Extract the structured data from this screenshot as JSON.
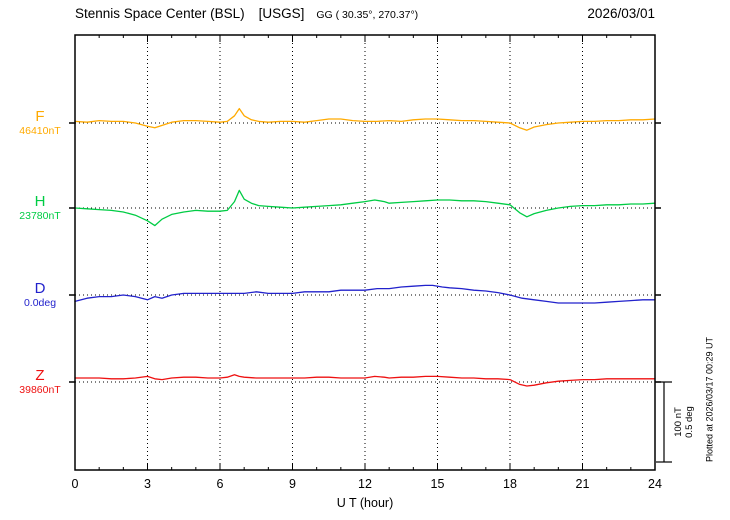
{
  "chart_data": {
    "type": "line",
    "title": "Stennis Space Center (BSL) [USGS] GG ( 30.35°, 270.37°)",
    "station": "Stennis Space Center (BSL)",
    "org": "[USGS]",
    "coords": "GG ( 30.35°, 270.37°)",
    "date": "2026/03/01",
    "xlabel": "U T (hour)",
    "x_range": [
      0,
      24
    ],
    "x_ticks": [
      0,
      3,
      6,
      9,
      12,
      15,
      18,
      21,
      24
    ],
    "grid": {
      "vertical": "dotted line every 3 hours",
      "horizontal": "dotted baseline per trace"
    },
    "scale_bar": {
      "nt_label": "100 nT",
      "deg_label": "0.5 deg",
      "nT_per_div": 100,
      "deg_per_div": 0.5
    },
    "plotted_at": "Plotted at 2026/03/17 00:29 UT",
    "series": [
      {
        "name": "F",
        "baseline_value": "46410nT",
        "units": "nT",
        "color": "#ffaa00",
        "points": [
          [
            0,
            2
          ],
          [
            0.5,
            1
          ],
          [
            1,
            3
          ],
          [
            1.5,
            2
          ],
          [
            2,
            2
          ],
          [
            2.5,
            0
          ],
          [
            3,
            -4
          ],
          [
            3.3,
            -6
          ],
          [
            3.7,
            -2
          ],
          [
            4,
            1
          ],
          [
            4.5,
            3
          ],
          [
            5,
            3
          ],
          [
            5.5,
            2
          ],
          [
            6,
            1
          ],
          [
            6.3,
            2
          ],
          [
            6.6,
            9
          ],
          [
            6.8,
            18
          ],
          [
            7,
            9
          ],
          [
            7.3,
            4
          ],
          [
            7.6,
            2
          ],
          [
            8,
            1
          ],
          [
            8.5,
            2
          ],
          [
            9,
            2
          ],
          [
            9.5,
            1
          ],
          [
            10,
            3
          ],
          [
            10.5,
            5
          ],
          [
            11,
            5
          ],
          [
            11.5,
            3
          ],
          [
            12,
            2
          ],
          [
            12.5,
            2
          ],
          [
            13,
            3
          ],
          [
            13.5,
            2
          ],
          [
            14,
            4
          ],
          [
            14.5,
            5
          ],
          [
            15,
            5
          ],
          [
            15.5,
            4
          ],
          [
            16,
            3
          ],
          [
            16.5,
            3
          ],
          [
            17,
            2
          ],
          [
            17.5,
            1
          ],
          [
            18,
            0
          ],
          [
            18.4,
            -6
          ],
          [
            18.7,
            -9
          ],
          [
            19,
            -5
          ],
          [
            19.5,
            -2
          ],
          [
            20,
            0
          ],
          [
            20.5,
            1
          ],
          [
            21,
            2
          ],
          [
            21.5,
            2
          ],
          [
            22,
            3
          ],
          [
            22.5,
            3
          ],
          [
            23,
            4
          ],
          [
            23.5,
            4
          ],
          [
            24,
            5
          ]
        ]
      },
      {
        "name": "H",
        "baseline_value": "23780nT",
        "units": "nT",
        "color": "#00cc44",
        "points": [
          [
            0,
            0
          ],
          [
            0.5,
            -1
          ],
          [
            1,
            -2
          ],
          [
            1.5,
            -3
          ],
          [
            2,
            -5
          ],
          [
            2.5,
            -9
          ],
          [
            3,
            -16
          ],
          [
            3.3,
            -22
          ],
          [
            3.6,
            -14
          ],
          [
            4,
            -8
          ],
          [
            4.5,
            -5
          ],
          [
            5,
            -3
          ],
          [
            5.5,
            -4
          ],
          [
            6,
            -4
          ],
          [
            6.3,
            -3
          ],
          [
            6.6,
            8
          ],
          [
            6.8,
            22
          ],
          [
            7,
            11
          ],
          [
            7.3,
            6
          ],
          [
            7.6,
            3
          ],
          [
            8,
            2
          ],
          [
            8.5,
            1
          ],
          [
            9,
            0
          ],
          [
            9.5,
            1
          ],
          [
            10,
            2
          ],
          [
            10.5,
            3
          ],
          [
            11,
            4
          ],
          [
            11.5,
            6
          ],
          [
            12,
            8
          ],
          [
            12.4,
            10
          ],
          [
            12.8,
            8
          ],
          [
            13,
            6
          ],
          [
            13.5,
            7
          ],
          [
            14,
            8
          ],
          [
            14.5,
            9
          ],
          [
            15,
            10
          ],
          [
            15.5,
            10
          ],
          [
            16,
            9
          ],
          [
            16.5,
            9
          ],
          [
            17,
            8
          ],
          [
            17.5,
            6
          ],
          [
            18,
            4
          ],
          [
            18.4,
            -6
          ],
          [
            18.7,
            -11
          ],
          [
            19,
            -7
          ],
          [
            19.5,
            -3
          ],
          [
            20,
            0
          ],
          [
            20.5,
            2
          ],
          [
            21,
            3
          ],
          [
            21.5,
            3
          ],
          [
            22,
            4
          ],
          [
            22.5,
            4
          ],
          [
            23,
            5
          ],
          [
            23.5,
            5
          ],
          [
            24,
            6
          ]
        ]
      },
      {
        "name": "D",
        "baseline_value": "0.0deg",
        "units": "deg",
        "color": "#2222cc",
        "points": [
          [
            0,
            -0.04
          ],
          [
            0.5,
            -0.02
          ],
          [
            1,
            -0.01
          ],
          [
            1.5,
            -0.01
          ],
          [
            2,
            0
          ],
          [
            2.5,
            -0.01
          ],
          [
            3,
            -0.03
          ],
          [
            3.3,
            -0.01
          ],
          [
            3.6,
            -0.02
          ],
          [
            4,
            0
          ],
          [
            4.5,
            0.01
          ],
          [
            5,
            0.01
          ],
          [
            5.5,
            0.01
          ],
          [
            6,
            0.01
          ],
          [
            6.5,
            0.01
          ],
          [
            7,
            0.01
          ],
          [
            7.5,
            0.02
          ],
          [
            8,
            0.01
          ],
          [
            8.5,
            0.01
          ],
          [
            9,
            0.01
          ],
          [
            9.5,
            0.02
          ],
          [
            10,
            0.02
          ],
          [
            10.5,
            0.02
          ],
          [
            11,
            0.03
          ],
          [
            11.5,
            0.03
          ],
          [
            12,
            0.03
          ],
          [
            12.5,
            0.04
          ],
          [
            13,
            0.04
          ],
          [
            13.5,
            0.05
          ],
          [
            14,
            0.055
          ],
          [
            14.5,
            0.06
          ],
          [
            14.8,
            0.06
          ],
          [
            15.2,
            0.05
          ],
          [
            15.5,
            0.045
          ],
          [
            16,
            0.04
          ],
          [
            16.5,
            0.03
          ],
          [
            17,
            0.025
          ],
          [
            17.5,
            0.015
          ],
          [
            18,
            0
          ],
          [
            18.5,
            -0.02
          ],
          [
            19,
            -0.03
          ],
          [
            19.5,
            -0.04
          ],
          [
            20,
            -0.05
          ],
          [
            20.5,
            -0.05
          ],
          [
            21,
            -0.05
          ],
          [
            21.5,
            -0.05
          ],
          [
            22,
            -0.045
          ],
          [
            22.5,
            -0.04
          ],
          [
            23,
            -0.035
          ],
          [
            23.5,
            -0.03
          ],
          [
            24,
            -0.03
          ]
        ]
      },
      {
        "name": "Z",
        "baseline_value": "39860nT",
        "units": "nT",
        "color": "#ee1111",
        "points": [
          [
            0,
            5
          ],
          [
            0.5,
            5
          ],
          [
            1,
            5
          ],
          [
            1.5,
            4
          ],
          [
            2,
            4
          ],
          [
            2.5,
            5
          ],
          [
            3,
            7
          ],
          [
            3.3,
            4
          ],
          [
            3.6,
            3
          ],
          [
            4,
            5
          ],
          [
            4.5,
            6
          ],
          [
            5,
            6
          ],
          [
            5.5,
            5
          ],
          [
            6,
            5
          ],
          [
            6.3,
            6
          ],
          [
            6.6,
            9
          ],
          [
            6.8,
            7
          ],
          [
            7,
            6
          ],
          [
            7.5,
            5
          ],
          [
            8,
            5
          ],
          [
            8.5,
            5
          ],
          [
            9,
            5
          ],
          [
            9.5,
            5
          ],
          [
            10,
            6
          ],
          [
            10.5,
            6
          ],
          [
            11,
            5
          ],
          [
            11.5,
            5
          ],
          [
            12,
            5
          ],
          [
            12.4,
            7
          ],
          [
            12.8,
            6
          ],
          [
            13,
            5
          ],
          [
            13.5,
            6
          ],
          [
            14,
            6
          ],
          [
            14.5,
            7
          ],
          [
            15,
            7
          ],
          [
            15.5,
            6
          ],
          [
            16,
            5
          ],
          [
            16.5,
            5
          ],
          [
            17,
            4
          ],
          [
            17.5,
            4
          ],
          [
            18,
            3
          ],
          [
            18.4,
            -3
          ],
          [
            18.7,
            -5
          ],
          [
            19,
            -4
          ],
          [
            19.5,
            -1
          ],
          [
            20,
            1
          ],
          [
            20.5,
            2
          ],
          [
            21,
            3
          ],
          [
            21.5,
            3
          ],
          [
            22,
            4
          ],
          [
            22.5,
            4
          ],
          [
            23,
            4
          ],
          [
            23.5,
            4
          ],
          [
            24,
            4
          ]
        ]
      }
    ]
  }
}
